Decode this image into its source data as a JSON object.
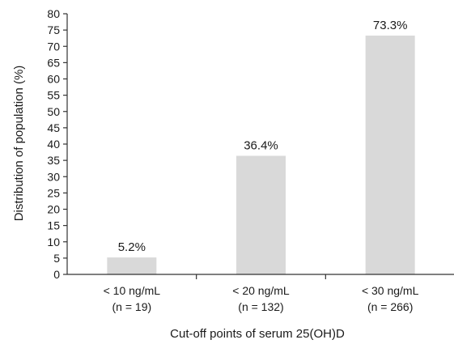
{
  "chart_data": {
    "type": "bar",
    "ylabel": "Distribution of population (%)",
    "xlabel": "Cut-off points of serum 25(OH)D",
    "ylim": [
      0,
      80
    ],
    "yticks": [
      0,
      5,
      10,
      15,
      20,
      25,
      30,
      35,
      40,
      45,
      50,
      55,
      60,
      65,
      70,
      75,
      80
    ],
    "categories": [
      {
        "label": "< 10 ng/mL",
        "sublabel": "(n = 19)"
      },
      {
        "label": "< 20 ng/mL",
        "sublabel": "(n = 132)"
      },
      {
        "label": "< 30 ng/mL",
        "sublabel": "(n = 266)"
      }
    ],
    "values": [
      5.2,
      36.4,
      73.3
    ],
    "data_labels": [
      "5.2%",
      "36.4%",
      "73.3%"
    ],
    "bar_color": "#d9d9d9",
    "grid": false,
    "legend": "none"
  }
}
